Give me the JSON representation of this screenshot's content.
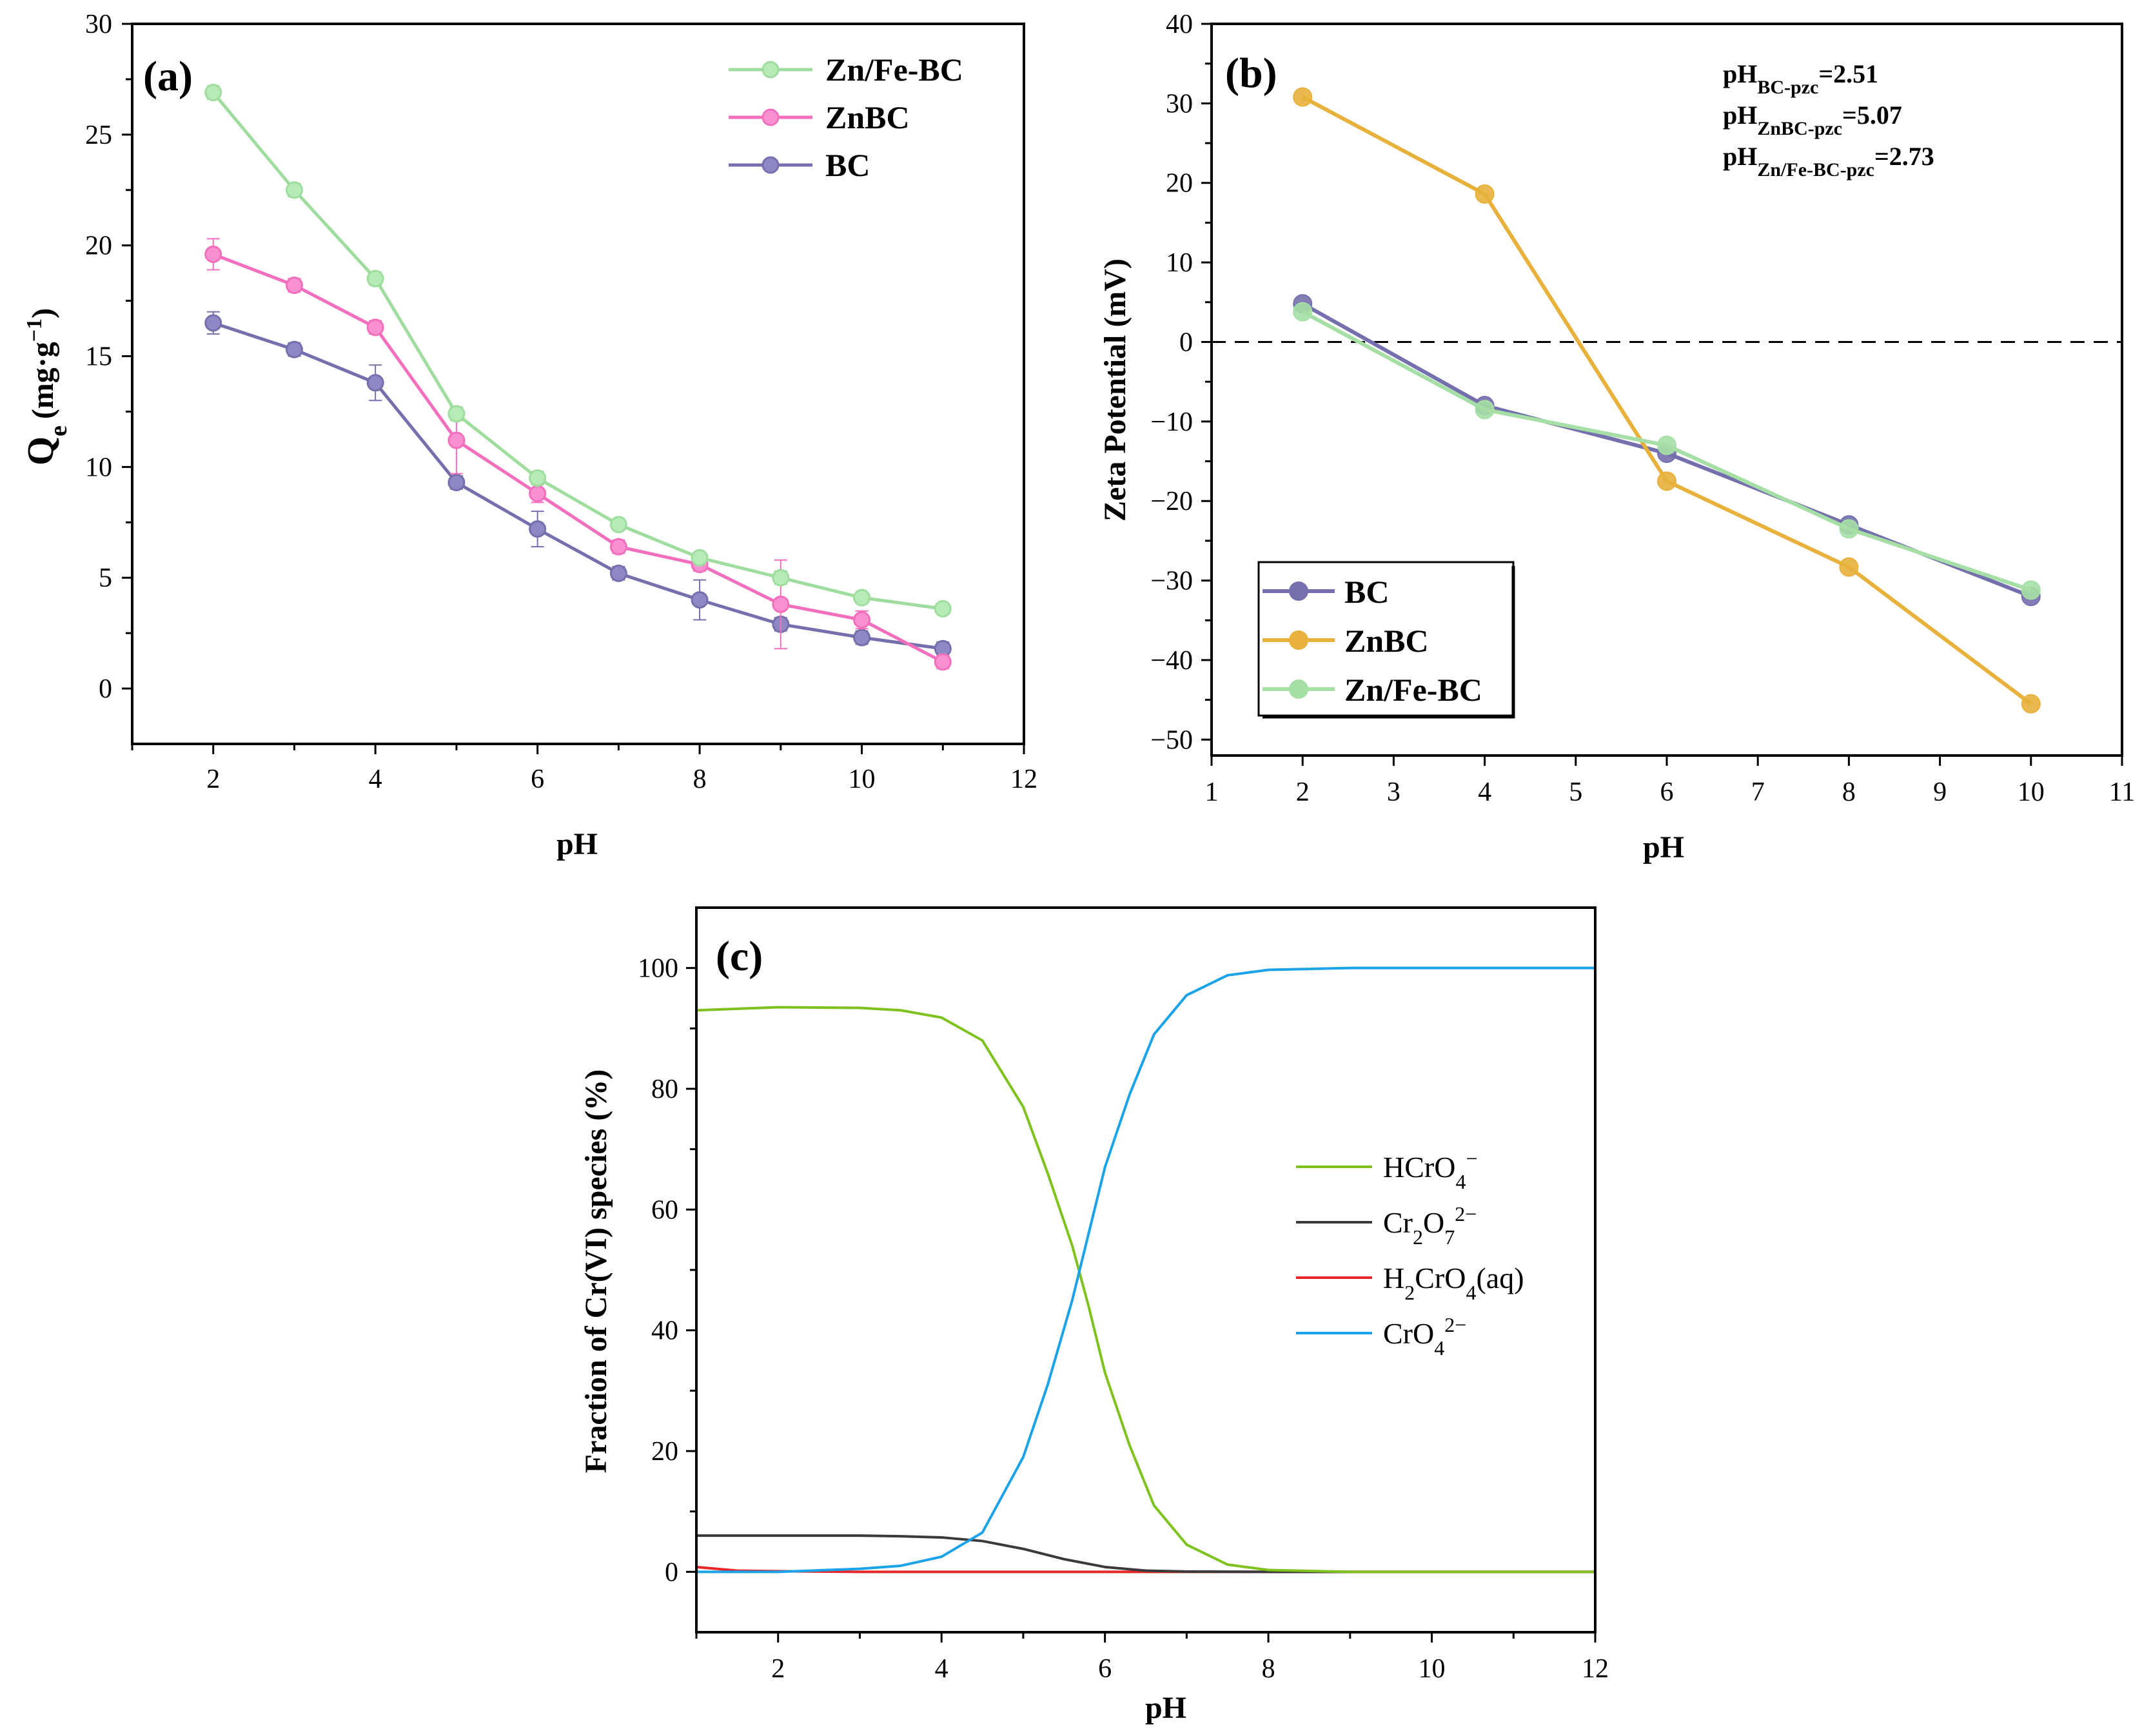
{
  "chart_data": [
    {
      "panel": "(a)",
      "type": "line",
      "xlabel": "pH",
      "ylabel": "Q",
      "ylabel_sub": "e",
      "ylabel_unit": "(mg·g",
      "ylabel_unit_sup": "−1",
      "ylabel_unit_close": ")",
      "xlim": [
        1,
        12
      ],
      "ylim": [
        -2.5,
        30
      ],
      "xticks": [
        2,
        4,
        6,
        8,
        10,
        12
      ],
      "yticks": [
        0,
        5,
        10,
        15,
        20,
        25,
        30
      ],
      "legend_position": "top-right",
      "series": [
        {
          "name": "Zn/Fe-BC",
          "color": "#9fdd9f",
          "marker_color": "#b5ebb5",
          "x": [
            2,
            3,
            4,
            5,
            6,
            7,
            8,
            9,
            10,
            11
          ],
          "y": [
            26.9,
            22.5,
            18.5,
            12.4,
            9.5,
            7.4,
            5.9,
            5.0,
            4.1,
            3.6
          ],
          "err": [
            0.3,
            0.3,
            0.3,
            0.3,
            0.3,
            0.2,
            0.2,
            0.3,
            0.2,
            0.2
          ]
        },
        {
          "name": "ZnBC",
          "color": "#f36fbd",
          "marker_color": "#f88fcf",
          "x": [
            2,
            3,
            4,
            5,
            6,
            7,
            8,
            9,
            10,
            11
          ],
          "y": [
            19.6,
            18.2,
            16.3,
            11.2,
            8.8,
            6.4,
            5.6,
            3.8,
            3.1,
            1.2
          ],
          "err": [
            0.7,
            0.3,
            0.3,
            1.5,
            0.4,
            0.3,
            0.3,
            2.0,
            0.4,
            0.3
          ]
        },
        {
          "name": "BC",
          "color": "#7470ad",
          "marker_color": "#8d89c4",
          "x": [
            2,
            3,
            4,
            5,
            6,
            7,
            8,
            9,
            10,
            11
          ],
          "y": [
            16.5,
            15.3,
            13.8,
            9.3,
            7.2,
            5.2,
            4.0,
            2.9,
            2.3,
            1.8
          ],
          "err": [
            0.5,
            0.3,
            0.8,
            0.3,
            0.8,
            0.3,
            0.9,
            0.3,
            0.3,
            0.3
          ]
        }
      ]
    },
    {
      "panel": "(b)",
      "type": "line",
      "xlabel": "pH",
      "ylabel": "Zeta Potential (mV)",
      "xlim": [
        1,
        11
      ],
      "ylim": [
        -52,
        40
      ],
      "xticks": [
        1,
        2,
        3,
        4,
        5,
        6,
        7,
        8,
        9,
        10,
        11
      ],
      "yticks": [
        40,
        30,
        20,
        10,
        0,
        -10,
        -20,
        -30,
        -40,
        -50
      ],
      "reference_line_y": 0,
      "legend_position": "bottom-left",
      "annotations": [
        {
          "prefix": "pH",
          "sub": "BC-pzc",
          "suffix": "=2.51"
        },
        {
          "prefix": "pH",
          "sub": "ZnBC-pzc",
          "suffix": "=5.07"
        },
        {
          "prefix": "pH",
          "sub": "Zn/Fe-BC-pzc",
          "suffix": "=2.73"
        }
      ],
      "series": [
        {
          "name": "BC",
          "color": "#7470ad",
          "x": [
            2,
            4,
            6,
            8,
            10
          ],
          "y": [
            4.8,
            -8.0,
            -14.0,
            -23.0,
            -32.0
          ]
        },
        {
          "name": "ZnBC",
          "color": "#e7b13c",
          "x": [
            2,
            4,
            6,
            8,
            10
          ],
          "y": [
            30.8,
            18.6,
            -17.5,
            -28.3,
            -45.5
          ]
        },
        {
          "name": "Zn/Fe-BC",
          "color": "#a5dfa5",
          "x": [
            2,
            4,
            6,
            8,
            10
          ],
          "y": [
            3.8,
            -8.5,
            -13.0,
            -23.5,
            -31.2
          ]
        }
      ]
    },
    {
      "panel": "(c)",
      "type": "line",
      "xlabel": "pH",
      "ylabel": "Fraction of Cr(VI) species (%)",
      "xlim": [
        1,
        12
      ],
      "ylim": [
        -10,
        110
      ],
      "xticks": [
        2,
        4,
        6,
        8,
        10,
        12
      ],
      "yticks": [
        0,
        20,
        40,
        60,
        80,
        100
      ],
      "legend_position": "center-right",
      "series": [
        {
          "name": "HCrO4−",
          "label_parts": [
            [
              "HCrO",
              ""
            ],
            [
              "4",
              "sub"
            ],
            [
              "−",
              "sup"
            ]
          ],
          "color": "#7ec21d",
          "x": [
            1,
            2,
            3,
            3.5,
            4,
            4.5,
            5,
            5.3,
            5.6,
            5.8,
            6,
            6.3,
            6.6,
            7,
            7.5,
            8,
            9,
            10,
            11,
            12
          ],
          "y": [
            93,
            93.5,
            93.4,
            93.0,
            91.8,
            88,
            77,
            66,
            54,
            44,
            33,
            21,
            11,
            4.5,
            1.2,
            0.3,
            0,
            0,
            0,
            0
          ]
        },
        {
          "name": "Cr2O72−",
          "label_parts": [
            [
              "Cr",
              ""
            ],
            [
              "2",
              "sub"
            ],
            [
              "O",
              ""
            ],
            [
              "7",
              "sub"
            ],
            [
              "2−",
              "sup"
            ]
          ],
          "color": "#3a3a3a",
          "x": [
            1,
            2,
            3,
            3.5,
            4,
            4.5,
            5,
            5.5,
            6,
            6.5,
            7,
            8,
            12
          ],
          "y": [
            6.0,
            6.0,
            6.0,
            5.9,
            5.7,
            5.1,
            3.8,
            2.1,
            0.8,
            0.2,
            0.05,
            0,
            0
          ]
        },
        {
          "name": "H2CrO4(aq)",
          "label_parts": [
            [
              "H",
              ""
            ],
            [
              "2",
              "sub"
            ],
            [
              "CrO",
              ""
            ],
            [
              "4",
              "sub"
            ],
            [
              "(aq)",
              ""
            ]
          ],
          "color": "#e8262a",
          "x": [
            1,
            1.5,
            2,
            3,
            12
          ],
          "y": [
            0.8,
            0.2,
            0.1,
            0,
            0
          ]
        },
        {
          "name": "CrO42−",
          "label_parts": [
            [
              "CrO",
              ""
            ],
            [
              "4",
              "sub"
            ],
            [
              "2−",
              "sup"
            ]
          ],
          "color": "#1aa3e8",
          "x": [
            1,
            2,
            3,
            3.5,
            4,
            4.5,
            5,
            5.3,
            5.6,
            5.8,
            6,
            6.3,
            6.6,
            7,
            7.5,
            8,
            9,
            10,
            11,
            12
          ],
          "y": [
            0,
            0,
            0.5,
            1,
            2.5,
            6.5,
            19,
            31,
            45,
            56,
            67,
            79,
            89,
            95.5,
            98.8,
            99.7,
            100,
            100,
            100,
            100
          ]
        }
      ]
    }
  ]
}
